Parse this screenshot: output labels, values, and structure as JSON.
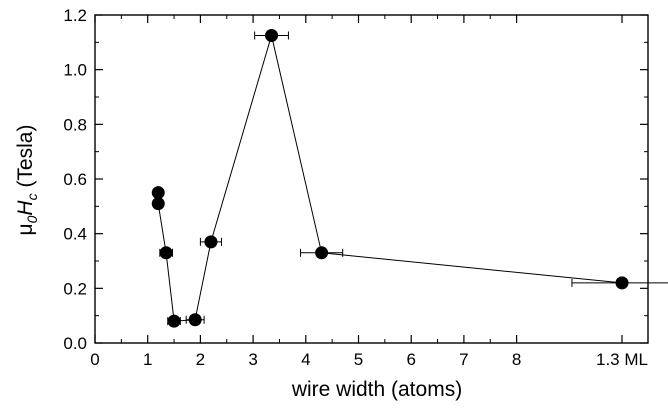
{
  "chart_data": {
    "type": "scatter",
    "xlabel": "wire width (atoms)",
    "ylabel": {
      "mu": "μ",
      "mu_sub": "0",
      "h": "H",
      "h_sub": "c",
      "rest": " (Tesla)"
    },
    "xlim": [
      0,
      10
    ],
    "ylim": [
      0,
      1.2
    ],
    "x_ticks": [
      {
        "value": 0,
        "label": "0"
      },
      {
        "value": 1,
        "label": "1"
      },
      {
        "value": 2,
        "label": "2"
      },
      {
        "value": 3,
        "label": "3"
      },
      {
        "value": 4,
        "label": "4"
      },
      {
        "value": 5,
        "label": "5"
      },
      {
        "value": 6,
        "label": "6"
      },
      {
        "value": 7,
        "label": "7"
      },
      {
        "value": 8,
        "label": "8"
      },
      {
        "value": 10,
        "label": "1.3 ML"
      }
    ],
    "y_ticks": [
      {
        "value": 0.0,
        "label": "0.0"
      },
      {
        "value": 0.2,
        "label": "0.2"
      },
      {
        "value": 0.4,
        "label": "0.4"
      },
      {
        "value": 0.6,
        "label": "0.6"
      },
      {
        "value": 0.8,
        "label": "0.8"
      },
      {
        "value": 1.0,
        "label": "1.0"
      },
      {
        "value": 1.2,
        "label": "1.2"
      }
    ],
    "grid": false,
    "line_connects_first_n_points": 9,
    "points": [
      {
        "x": 1.2,
        "y": 0.55,
        "xerr": 0.0
      },
      {
        "x": 1.2,
        "y": 0.51,
        "xerr": 0.0
      },
      {
        "x": 1.35,
        "y": 0.33,
        "xerr": 0.12
      },
      {
        "x": 1.5,
        "y": 0.08,
        "xerr": 0.12
      },
      {
        "x": 1.9,
        "y": 0.085,
        "xerr": 0.17
      },
      {
        "x": 2.2,
        "y": 0.37,
        "xerr": 0.2
      },
      {
        "x": 3.35,
        "y": 1.125,
        "xerr": 0.32
      },
      {
        "x": 4.3,
        "y": 0.33,
        "xerr": 0.4
      },
      {
        "x": 10.0,
        "y": 0.22,
        "xerr": 0.95
      }
    ]
  }
}
